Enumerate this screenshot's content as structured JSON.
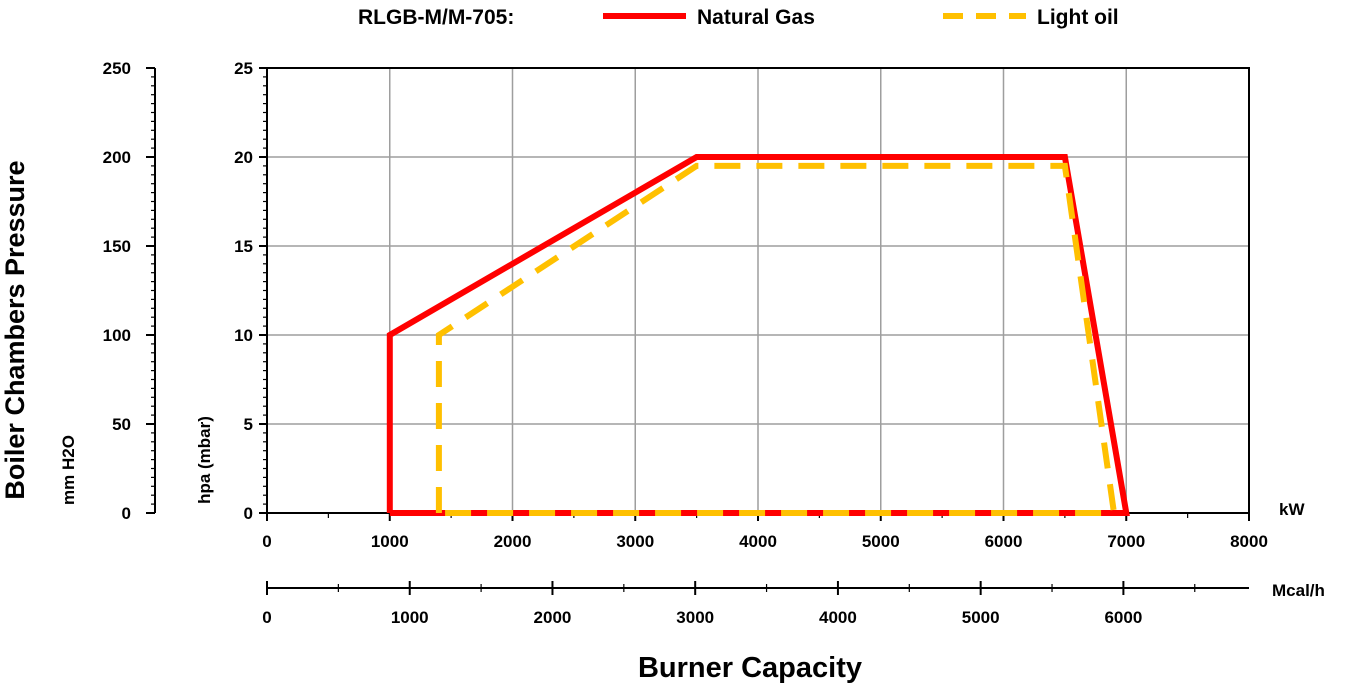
{
  "chart_data": {
    "type": "line",
    "title": "RLGB-M/M-705:",
    "legend": {
      "placement": "top",
      "entries": [
        "Natural Gas",
        "Light oil"
      ]
    },
    "xlabel": "Burner Capacity",
    "ylabel": "Boiler Chambers Pressure",
    "x_axis_kw": {
      "unit": "kW",
      "range": [
        0,
        8000
      ],
      "ticks": [
        "0",
        "1000",
        "2000",
        "3000",
        "4000",
        "5000",
        "6000",
        "7000",
        "8000"
      ]
    },
    "x_axis_mcal": {
      "unit": "Mcal/h",
      "range": [
        0,
        6880
      ],
      "tick_values": [
        0,
        1000,
        2000,
        3000,
        4000,
        5000,
        6000
      ],
      "ticks": [
        "0",
        "1000",
        "2000",
        "3000",
        "4000",
        "5000",
        "6000"
      ]
    },
    "y_axis_hpa": {
      "unit": "hpa (mbar)",
      "range": [
        0,
        25
      ],
      "ticks": [
        "0",
        "5",
        "10",
        "15",
        "20",
        "25"
      ]
    },
    "y_axis_mmh2o": {
      "unit": "mm H2O",
      "range": [
        0,
        250
      ],
      "ticks": [
        "0",
        "50",
        "100",
        "150",
        "200",
        "250"
      ]
    },
    "grid": true,
    "series": [
      {
        "name": "Natural Gas",
        "color": "#ff0000",
        "style": "solid",
        "points": [
          [
            1000,
            0
          ],
          [
            1000,
            10
          ],
          [
            3500,
            20
          ],
          [
            6500,
            20
          ],
          [
            7000,
            0
          ],
          [
            1000,
            0
          ]
        ]
      },
      {
        "name": "Light oil",
        "color": "#ffc000",
        "style": "dashed",
        "points": [
          [
            1400,
            0
          ],
          [
            1400,
            10
          ],
          [
            3500,
            19.5
          ],
          [
            6500,
            19.5
          ],
          [
            6900,
            0
          ],
          [
            1400,
            0
          ]
        ]
      }
    ]
  }
}
